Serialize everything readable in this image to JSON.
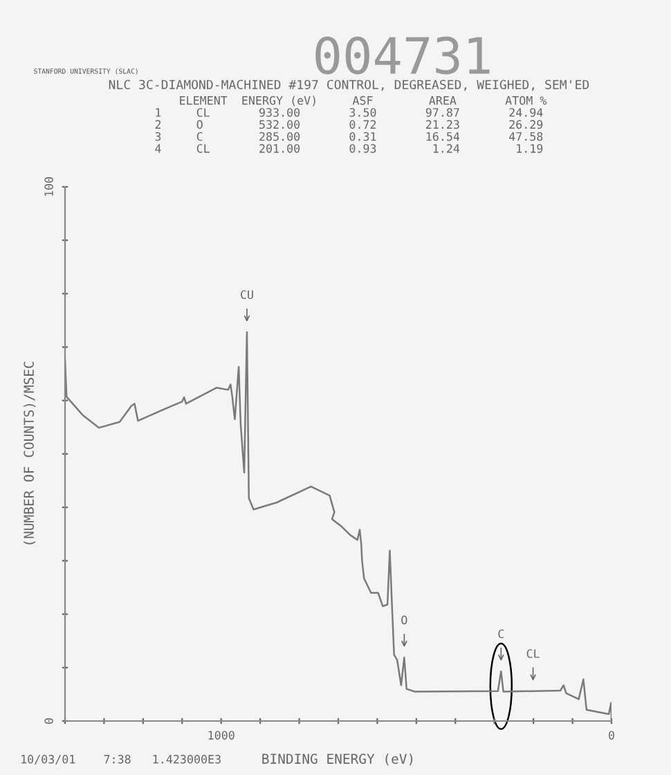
{
  "chart_data": {
    "type": "line",
    "title": "NLC 3C-DIAMOND-MACHINED #197 CONTROL, DEGREASED, WEIGHED, SEM'ED",
    "xlabel": "BINDING ENERGY (eV)",
    "ylabel": "(NUMBER OF COUNTS)/MSEC",
    "annotations": [
      "STANFORD UNIVERSITY (SLAC)",
      "004731",
      "    ELEMENT  ENERGY (eV)     ASF        AREA       ATOM %",
      "1     CL       933.00       3.50       97.87       24.94",
      "2     O        532.00       0.72       21.23       26.29",
      "3     C        285.00       0.31       16.54       47.58",
      "4     CL       201.00       0.93        1.24        1.19",
      "10/03/01    7:38   1.423000E3",
      {
        "text": "CU",
        "x": 934,
        "y": 72.8
      },
      {
        "text": "O",
        "x": 531,
        "y": 11.9
      },
      {
        "text": "C",
        "x": 283,
        "y": 9.3
      },
      {
        "text": "CL",
        "x": 201,
        "y": 5.6
      }
    ],
    "x": [
      1400,
      1396,
      1355,
      1313,
      1260,
      1230,
      1222,
      1213,
      1154,
      1100,
      1095,
      1090,
      1012,
      982,
      976,
      972,
      965,
      955,
      950,
      941,
      934,
      929,
      917,
      858,
      770,
      722,
      710,
      716,
      693,
      669,
      651,
      645,
      641,
      639,
      634,
      616,
      598,
      586,
      574,
      568,
      562,
      557,
      549,
      539,
      531,
      525,
      504,
      291,
      283,
      277,
      131,
      123,
      116,
      84,
      72,
      64,
      7,
      1,
      0
    ],
    "series": [
      {
        "color": "#7a7a7a",
        "values": [
          67.6,
          60.7,
          57.3,
          54.9,
          56,
          59,
          59.4,
          56.2,
          58.1,
          59.8,
          60.6,
          59.4,
          62.4,
          62,
          63,
          61,
          56.5,
          66.3,
          55.5,
          46.5,
          72.8,
          41.7,
          39.6,
          40.9,
          43.9,
          42.2,
          39.1,
          37.8,
          36.5,
          34.8,
          33.9,
          35.8,
          33,
          30,
          26.7,
          24,
          24,
          21.5,
          21.8,
          31.9,
          21,
          12.4,
          11.4,
          6.7,
          11.9,
          6,
          5.5,
          5.6,
          9.3,
          5.5,
          5.7,
          6.7,
          5.2,
          4.1,
          7.8,
          2.1,
          1.3,
          3.4,
          0.3
        ]
      }
    ],
    "xlim": [
      1400,
      0
    ],
    "xticks": [
      {
        "value": 1400,
        "label": null
      },
      {
        "value": 1300,
        "label": null
      },
      {
        "value": 1200,
        "label": null
      },
      {
        "value": 1100,
        "label": null
      },
      1000,
      {
        "value": 900,
        "label": null
      },
      {
        "value": 800,
        "label": null
      },
      {
        "value": 700,
        "label": null
      },
      {
        "value": 600,
        "label": null
      },
      {
        "value": 500,
        "label": null
      },
      {
        "value": 400,
        "label": null
      },
      {
        "value": 300,
        "label": null
      },
      {
        "value": 200,
        "label": null
      },
      {
        "value": 100,
        "label": null
      },
      0
    ],
    "ylim": [
      0,
      100
    ],
    "yticks": [
      0,
      {
        "value": 10,
        "label": null
      },
      {
        "value": 20,
        "label": null
      },
      {
        "value": 30,
        "label": null
      },
      {
        "value": 40,
        "label": null
      },
      {
        "value": 50,
        "label": null
      },
      {
        "value": 60,
        "label": null
      },
      {
        "value": 70,
        "label": null
      },
      {
        "value": 80,
        "label": null
      },
      {
        "value": 90,
        "label": null
      },
      100
    ],
    "grid": false,
    "marker": "none",
    "line_style": "solid"
  }
}
